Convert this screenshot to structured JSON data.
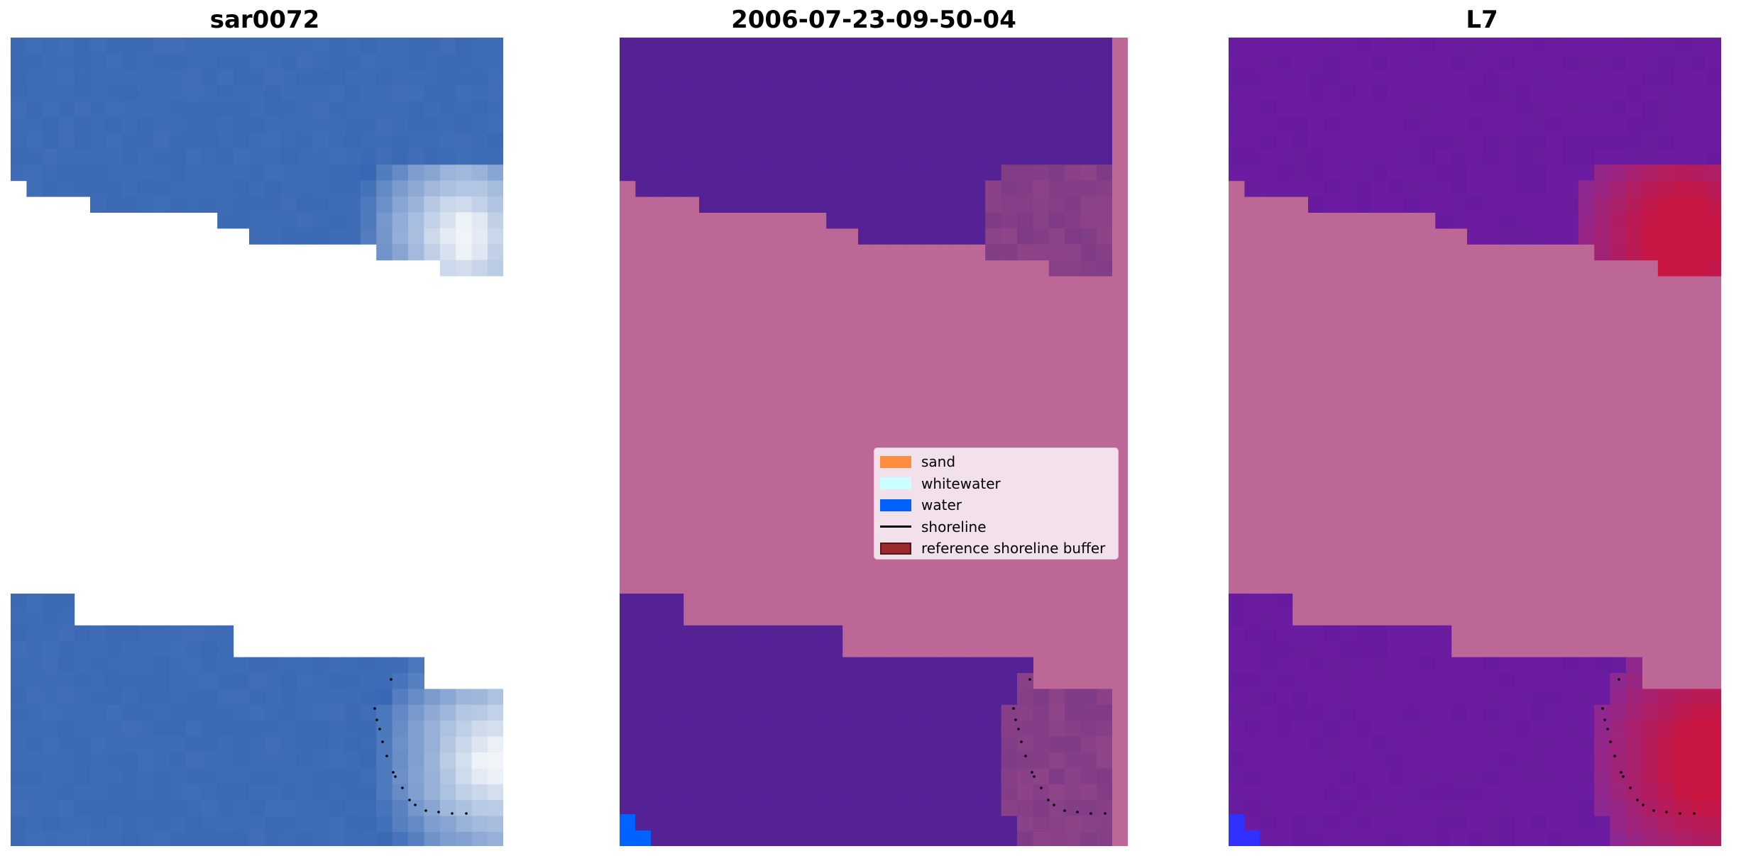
{
  "panels": [
    {
      "title": "sar0072"
    },
    {
      "title": "2006-07-23-09-50-04"
    },
    {
      "title": "L7"
    }
  ],
  "legend": {
    "items": [
      {
        "label": "sand",
        "kind": "patch",
        "color": "#ff8c40"
      },
      {
        "label": "whitewater",
        "kind": "patch",
        "color": "#ccffff"
      },
      {
        "label": "water",
        "kind": "patch",
        "color": "#0062ff"
      },
      {
        "label": "shoreline",
        "kind": "line",
        "color": "#000000"
      },
      {
        "label": "reference shoreline buffer",
        "kind": "patch",
        "color": "#9a2a2e"
      }
    ]
  },
  "colors": {
    "rgb_water": "#3462b0",
    "rgb_whitewater": "#9fb6d2",
    "class_water": "#552296",
    "class_buffer": "#bd6797",
    "class_buffer_overlap": "#8c3f80",
    "mndwi_water": "#641a9c",
    "mndwi_land": "#c91640",
    "shoreline_points": "#000000"
  }
}
